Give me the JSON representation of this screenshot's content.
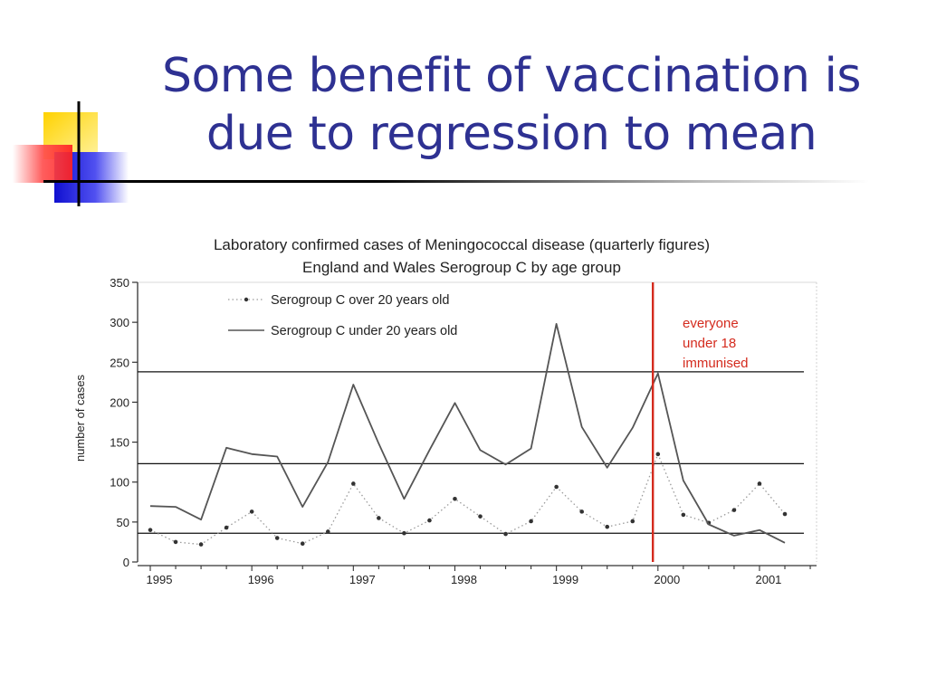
{
  "slide": {
    "title_line1": "Some benefit of vaccination is",
    "title_line2": "due to regression to mean"
  },
  "colors": {
    "title": "#2e3192",
    "annotation": "#d42b1e",
    "deco_yellow": "#ffe000",
    "deco_red": "#ff3030",
    "deco_blue": "#2020e0"
  },
  "chart_data": {
    "type": "line",
    "title_line1": "Laboratory confirmed cases of Meningococcal  disease (quarterly figures)",
    "title_line2": "England and Wales Serogroup C by  age group",
    "ylabel": "number of cases",
    "xlabel": "",
    "ylim": [
      0,
      350
    ],
    "yticks": [
      0,
      50,
      100,
      150,
      200,
      250,
      300,
      350
    ],
    "xlim": [
      1995,
      2001.5
    ],
    "xtick_labels": [
      "1995",
      "1996",
      "1997",
      "1998",
      "1999",
      "2000",
      "2001"
    ],
    "legend_position": "top-left",
    "series": [
      {
        "name": "Serogroup C over 20 years old",
        "style": "dotted-markers",
        "x": [
          1995.0,
          1995.25,
          1995.5,
          1995.75,
          1996.0,
          1996.25,
          1996.5,
          1996.75,
          1997.0,
          1997.25,
          1997.5,
          1997.75,
          1998.0,
          1998.25,
          1998.5,
          1998.75,
          1999.0,
          1999.25,
          1999.5,
          1999.75,
          2000.0,
          2000.25,
          2000.5,
          2000.75,
          2001.0,
          2001.25
        ],
        "values": [
          40,
          25,
          22,
          43,
          63,
          30,
          23,
          38,
          98,
          55,
          36,
          52,
          79,
          57,
          35,
          51,
          94,
          63,
          44,
          51,
          135,
          59,
          49,
          65,
          98,
          60
        ]
      },
      {
        "name": "Serogroup C under 20 years old",
        "style": "solid",
        "x": [
          1995.0,
          1995.25,
          1995.5,
          1995.75,
          1996.0,
          1996.25,
          1996.5,
          1996.75,
          1997.0,
          1997.25,
          1997.5,
          1997.75,
          1998.0,
          1998.25,
          1998.5,
          1998.75,
          1999.0,
          1999.25,
          1999.5,
          1999.75,
          2000.0,
          2000.25,
          2000.5,
          2000.75,
          2001.0,
          2001.25
        ],
        "values": [
          70,
          69,
          53,
          143,
          135,
          132,
          69,
          125,
          222,
          148,
          79,
          140,
          199,
          140,
          122,
          142,
          298,
          169,
          118,
          168,
          236,
          102,
          47,
          33,
          40,
          24
        ]
      }
    ],
    "reference_lines": [
      238,
      123,
      36
    ],
    "vaccination_line_x": 1999.95,
    "annotation": [
      "everyone",
      "under 18",
      "immunised"
    ]
  }
}
